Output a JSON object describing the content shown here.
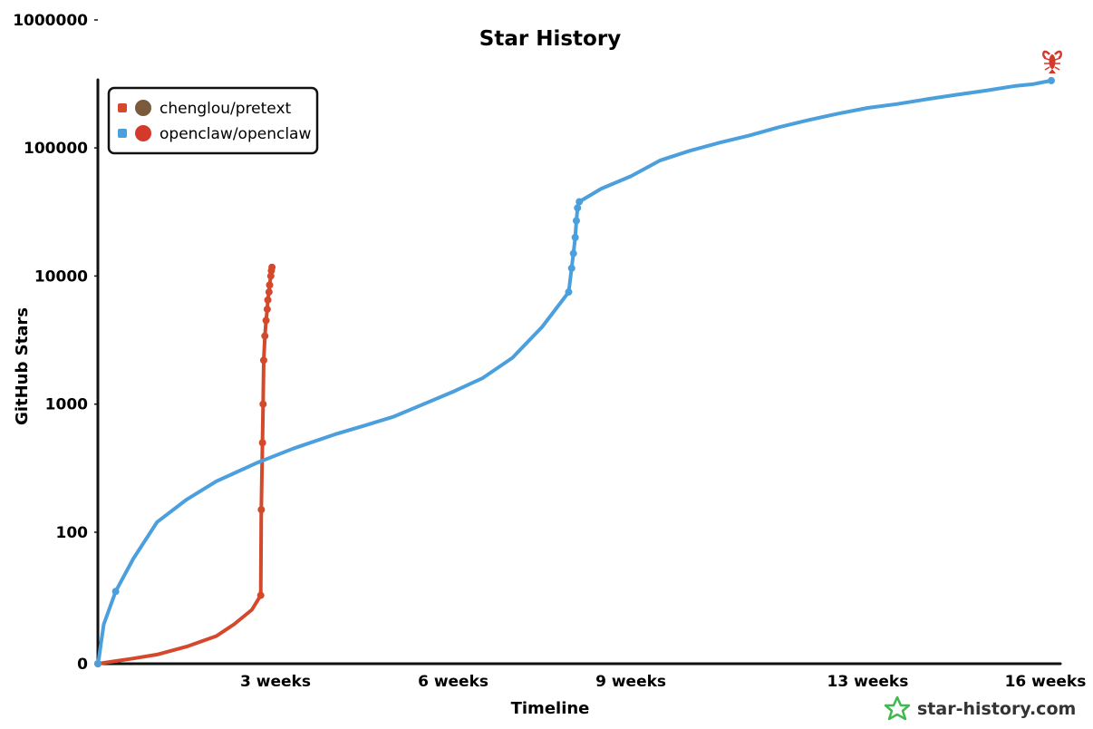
{
  "chart_data": {
    "type": "line",
    "title": "Star History",
    "xlabel": "Timeline",
    "ylabel": "GitHub Stars",
    "y_scale": "log",
    "y_ticks": [
      {
        "value": 0,
        "label": "0"
      },
      {
        "value": 100,
        "label": "100"
      },
      {
        "value": 1000,
        "label": "1000"
      },
      {
        "value": 10000,
        "label": "10000"
      },
      {
        "value": 100000,
        "label": "100000"
      },
      {
        "value": 1000000,
        "label": "1000000"
      }
    ],
    "x_unit": "weeks",
    "x_ticks": [
      {
        "value": 3,
        "label": "3 weeks"
      },
      {
        "value": 6,
        "label": "6 weeks"
      },
      {
        "value": 9,
        "label": "9 weeks"
      },
      {
        "value": 13,
        "label": "13 weeks"
      },
      {
        "value": 16,
        "label": "16 weeks"
      }
    ],
    "xlim": [
      0,
      16.1
    ],
    "ylim": [
      0,
      1000000
    ],
    "legend_position": "top-left",
    "series": [
      {
        "name": "chenglou/pretext",
        "color": "#d4492c",
        "avatar_color": "#7a5a3c",
        "points": [
          [
            0,
            0
          ],
          [
            0.6,
            4
          ],
          [
            1.0,
            7
          ],
          [
            1.5,
            13
          ],
          [
            2.0,
            21
          ],
          [
            2.3,
            30
          ],
          [
            2.6,
            41
          ],
          [
            2.75,
            52
          ],
          [
            2.76,
            150
          ],
          [
            2.78,
            500
          ],
          [
            2.79,
            1000
          ],
          [
            2.8,
            2200
          ],
          [
            2.82,
            3400
          ],
          [
            2.84,
            4500
          ],
          [
            2.86,
            5500
          ],
          [
            2.87,
            6500
          ],
          [
            2.89,
            7500
          ],
          [
            2.9,
            8500
          ],
          [
            2.92,
            10000
          ],
          [
            2.93,
            11000
          ],
          [
            2.94,
            11700
          ]
        ]
      },
      {
        "name": "openclaw/openclaw",
        "color": "#4a9fdc",
        "avatar_color": "#d43a2c",
        "points": [
          [
            0,
            0
          ],
          [
            0.02,
            5
          ],
          [
            0.05,
            15
          ],
          [
            0.1,
            30
          ],
          [
            0.3,
            55
          ],
          [
            0.6,
            80
          ],
          [
            1.0,
            120
          ],
          [
            1.5,
            180
          ],
          [
            2.0,
            250
          ],
          [
            2.7,
            350
          ],
          [
            3.3,
            450
          ],
          [
            4.0,
            580
          ],
          [
            4.5,
            680
          ],
          [
            5.0,
            800
          ],
          [
            5.5,
            1000
          ],
          [
            6.0,
            1250
          ],
          [
            6.5,
            1600
          ],
          [
            7.0,
            2300
          ],
          [
            7.5,
            4000
          ],
          [
            7.95,
            7500
          ],
          [
            8.0,
            11500
          ],
          [
            8.03,
            15000
          ],
          [
            8.06,
            20000
          ],
          [
            8.08,
            27000
          ],
          [
            8.1,
            34000
          ],
          [
            8.13,
            38000
          ],
          [
            8.5,
            48000
          ],
          [
            9.0,
            60000
          ],
          [
            9.5,
            80000
          ],
          [
            10.0,
            95000
          ],
          [
            10.5,
            110000
          ],
          [
            11.0,
            125000
          ],
          [
            11.5,
            145000
          ],
          [
            12.0,
            165000
          ],
          [
            12.5,
            185000
          ],
          [
            13.0,
            205000
          ],
          [
            13.5,
            220000
          ],
          [
            14.0,
            240000
          ],
          [
            14.5,
            260000
          ],
          [
            15.0,
            280000
          ],
          [
            15.5,
            305000
          ],
          [
            15.8,
            315000
          ],
          [
            16.1,
            335000
          ]
        ]
      }
    ]
  },
  "watermark": {
    "text": "star-history.com",
    "icon": "star-history-logo-icon",
    "color": "#3fba50"
  },
  "end_marker": {
    "icon": "lobster-icon",
    "color": "#d43a2c"
  }
}
